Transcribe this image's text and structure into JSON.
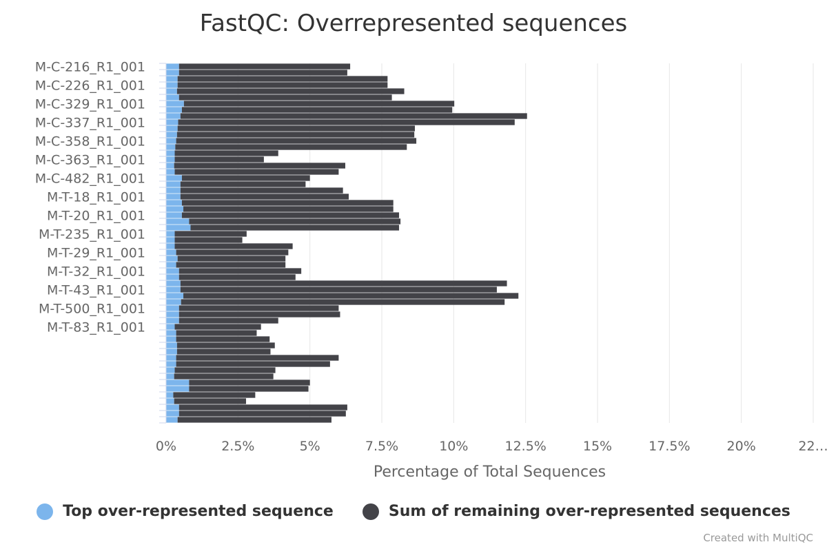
{
  "colors": {
    "top": "#7cb5ec",
    "rest": "#434348",
    "grid": "#e6e6e6",
    "axis": "#ccd6eb",
    "text": "#666666"
  },
  "credits": "Created with MultiQC",
  "chart_data": {
    "type": "bar",
    "orientation": "horizontal",
    "stacked": true,
    "title": "FastQC: Overrepresented sequences",
    "xlabel": "Percentage of Total Sequences",
    "xlim": [
      0,
      22.5
    ],
    "xticks": [
      "0%",
      "2.5%",
      "5%",
      "7.5%",
      "10%",
      "12.5%",
      "15%",
      "17.5%",
      "20%",
      "22…"
    ],
    "xtick_values": [
      0,
      2.5,
      5,
      7.5,
      10,
      12.5,
      15,
      17.5,
      20,
      22.5
    ],
    "labeled_categories": [
      "M-C-216_R1_001",
      "M-C-226_R1_001",
      "M-C-329_R1_001",
      "M-C-337_R1_001",
      "M-C-358_R1_001",
      "M-C-363_R1_001",
      "M-C-482_R1_001",
      "M-T-18_R1_001",
      "M-T-20_R1_001",
      "M-T-235_R1_001",
      "M-T-29_R1_001",
      "M-T-32_R1_001",
      "M-T-43_R1_001",
      "M-T-500_R1_001",
      "M-T-83_R1_001"
    ],
    "label_every": 3,
    "series": [
      {
        "name": "Top over-represented sequence",
        "values": [
          0.45,
          0.45,
          0.4,
          0.4,
          0.38,
          0.45,
          0.62,
          0.55,
          0.5,
          0.42,
          0.4,
          0.38,
          0.35,
          0.32,
          0.3,
          0.3,
          0.28,
          0.3,
          0.55,
          0.5,
          0.5,
          0.5,
          0.55,
          0.6,
          0.55,
          0.8,
          0.85,
          0.3,
          0.3,
          0.3,
          0.35,
          0.4,
          0.35,
          0.45,
          0.45,
          0.5,
          0.5,
          0.6,
          0.52,
          0.45,
          0.45,
          0.45,
          0.3,
          0.35,
          0.35,
          0.38,
          0.38,
          0.35,
          0.35,
          0.3,
          0.28,
          0.8,
          0.8,
          0.25,
          0.28,
          0.45,
          0.45,
          0.4
        ]
      },
      {
        "name": "Sum of remaining over-represented sequences",
        "values": [
          5.95,
          5.85,
          7.3,
          7.3,
          7.9,
          7.4,
          9.4,
          9.4,
          12.05,
          11.7,
          8.25,
          8.25,
          8.35,
          8.05,
          3.6,
          3.1,
          5.95,
          5.7,
          4.45,
          4.35,
          5.65,
          5.85,
          7.35,
          7.3,
          7.55,
          7.35,
          7.25,
          2.5,
          2.35,
          4.1,
          3.9,
          3.75,
          3.8,
          4.25,
          4.05,
          11.35,
          11.0,
          11.65,
          11.25,
          5.55,
          5.6,
          3.45,
          3.0,
          2.8,
          3.25,
          3.4,
          3.25,
          5.65,
          5.35,
          3.5,
          3.45,
          4.2,
          4.15,
          2.85,
          2.5,
          5.85,
          5.8,
          5.35
        ]
      }
    ]
  }
}
